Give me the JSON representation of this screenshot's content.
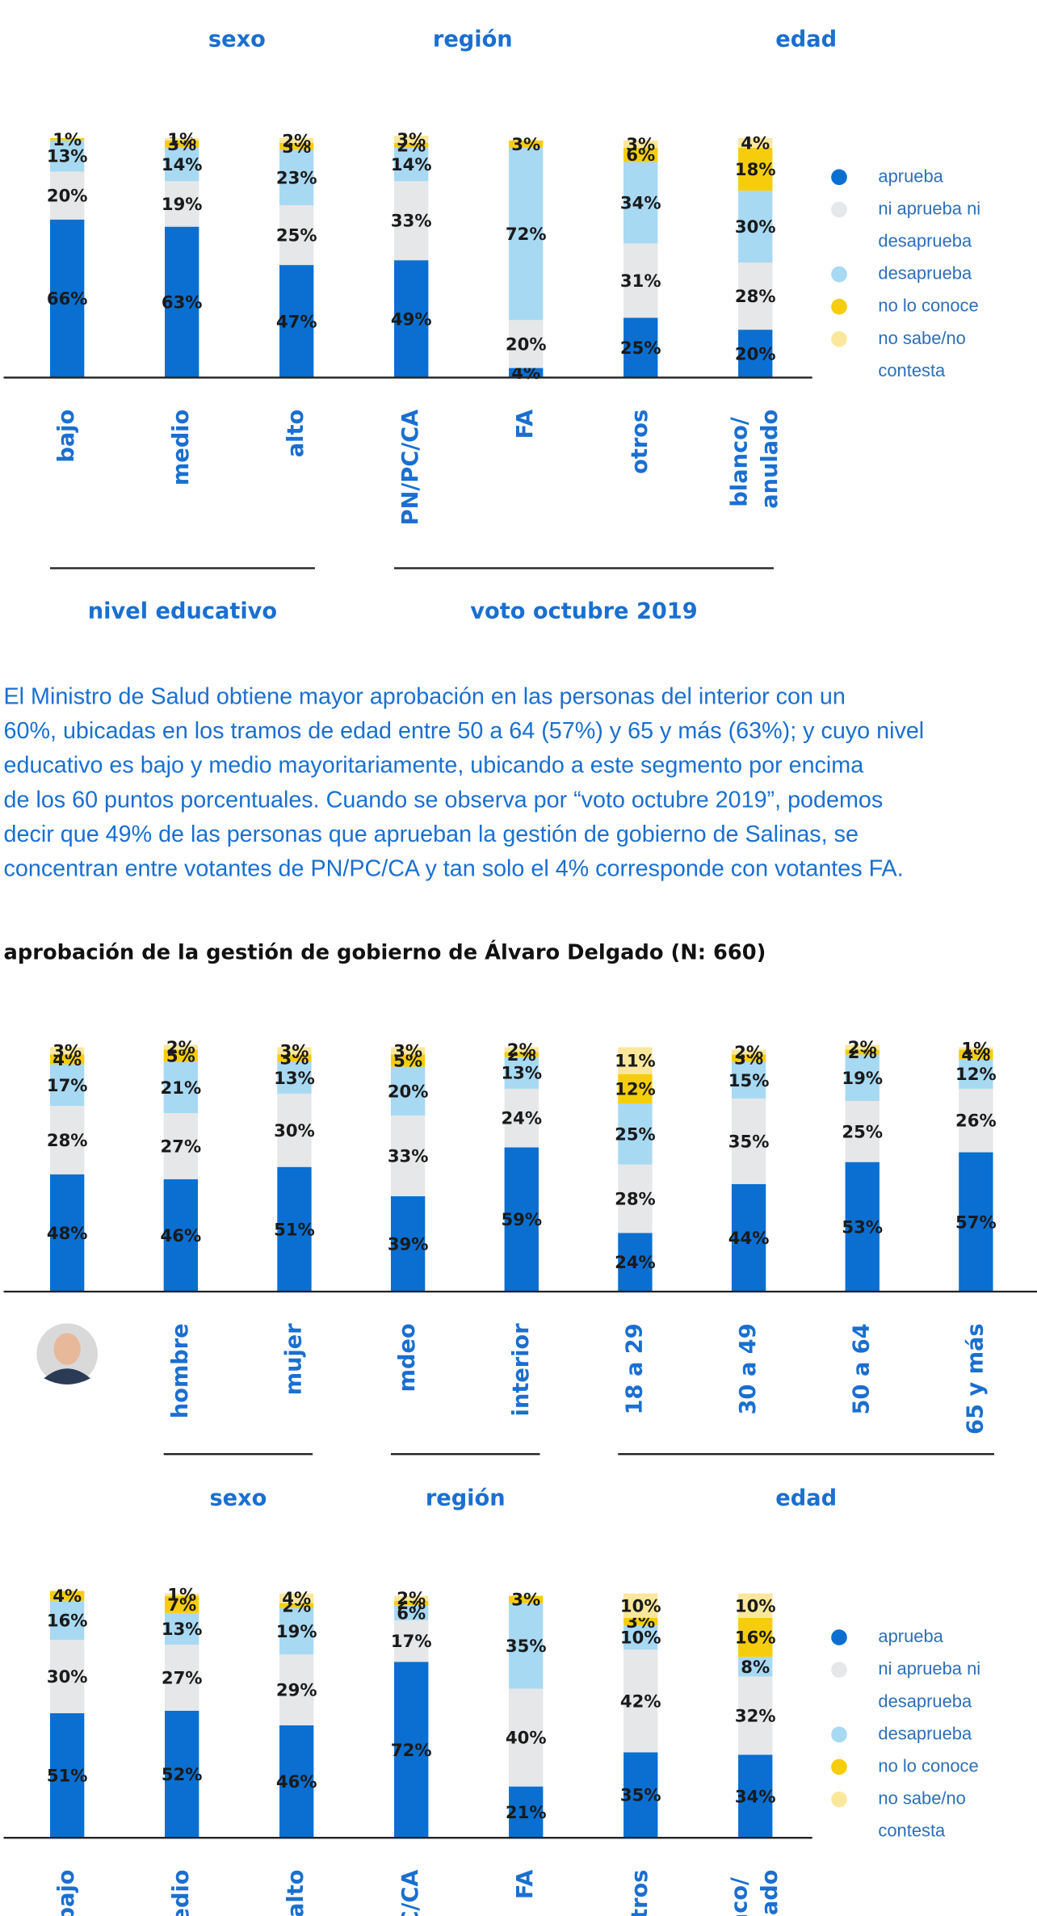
{
  "header_labels": [
    "sexo",
    "región",
    "edad"
  ],
  "paragraph": [
    "El Ministro de Salud obtiene mayor aprobación en las personas del interior con un",
    "60%, ubicadas en los tramos de edad entre 50 a 64 (57%) y 65 y más (63%); y cuyo nivel",
    "educativo es bajo y medio mayoritariamente, ubicando a este segmento por encima",
    "de los 60 puntos porcentuales. Cuando se observa por “voto octubre 2019”, podemos",
    "decir que 49% de las personas que aprueban la gestión de gobierno de Salinas, se",
    "concentran entre votantes de PN/PC/CA y tan solo el 4% corresponde con votantes FA."
  ],
  "heading": "aprobación de la gestión de gobierno de Álvaro Delgado (N: 660)",
  "chart_data": [
    {
      "type": "stacked-bar",
      "ylim": [
        0,
        100
      ],
      "legend": true,
      "categories": [
        "bajo",
        "medio",
        "alto",
        "PN/PC/CA",
        "FA",
        "otros",
        "blanco/ anulado"
      ],
      "groups": [
        "nivel educativo",
        "voto octubre 2019"
      ],
      "series": [
        {
          "name": "aprueba",
          "color": "#0a6fd0",
          "values": [
            66,
            63,
            47,
            49,
            4,
            25,
            20
          ],
          "value_labels": [
            "66%",
            "63%",
            "47%",
            "49%",
            "4%",
            "25%",
            "20%"
          ]
        },
        {
          "name": "ni aprueba ni desaprueba",
          "color": "#e6e7e8",
          "values": [
            20,
            19,
            25,
            33,
            20,
            31,
            28
          ],
          "value_labels": [
            "20%",
            "19%",
            "25%",
            "33%",
            "20%",
            "31%",
            "28%"
          ]
        },
        {
          "name": "desaprueba",
          "color": "#a8d9f3",
          "values": [
            13,
            14,
            23,
            14,
            72,
            34,
            30
          ],
          "value_labels": [
            "13%",
            "14%",
            "23%",
            "14%",
            "72%",
            "34%",
            "30%"
          ]
        },
        {
          "name": "no lo conoce",
          "color": "#f6cd0c",
          "values": [
            1,
            3,
            3,
            2,
            3,
            6,
            18
          ],
          "value_labels": [
            "1%",
            "3%",
            "3%",
            "2%",
            "3%",
            "6%",
            "18%"
          ]
        },
        {
          "name": "no sabe/no contesta",
          "color": "#fbe79c",
          "values": [
            null,
            1,
            2,
            3,
            null,
            3,
            4
          ],
          "value_labels": [
            null,
            "1%",
            "2%",
            "3%",
            null,
            "3%",
            "4%"
          ]
        }
      ]
    },
    {
      "type": "stacked-bar",
      "ylim": [
        0,
        100
      ],
      "legend": false,
      "categories": [
        null,
        "hombre",
        "mujer",
        "mdeo",
        "interior",
        "18 a 29",
        "30 a 49",
        "50 a 64",
        "65 y más"
      ],
      "groups": [
        "sexo",
        "región",
        "edad"
      ],
      "series": [
        {
          "name": "aprueba",
          "color": "#0a6fd0",
          "values": [
            48,
            46,
            51,
            39,
            59,
            24,
            44,
            53,
            57
          ],
          "value_labels": [
            "48%",
            "46%",
            "51%",
            "39%",
            "59%",
            "24%",
            "44%",
            "53%",
            "57%"
          ]
        },
        {
          "name": "ni aprueba ni desaprueba",
          "color": "#e6e7e8",
          "values": [
            28,
            27,
            30,
            33,
            24,
            28,
            35,
            25,
            26
          ],
          "value_labels": [
            "28%",
            "27%",
            "30%",
            "33%",
            "24%",
            "28%",
            "35%",
            "25%",
            "26%"
          ]
        },
        {
          "name": "desaprueba",
          "color": "#a8d9f3",
          "values": [
            17,
            21,
            13,
            20,
            13,
            25,
            15,
            19,
            12
          ],
          "value_labels": [
            "17%",
            "21%",
            "13%",
            "20%",
            "13%",
            "25%",
            "15%",
            "19%",
            "12%"
          ]
        },
        {
          "name": "no lo conoce",
          "color": "#f6cd0c",
          "values": [
            4,
            5,
            3,
            5,
            2,
            12,
            3,
            2,
            4
          ],
          "value_labels": [
            "4%",
            "5%",
            "3%",
            "5%",
            "2%",
            "12%",
            "3%",
            "2%",
            "4%"
          ]
        },
        {
          "name": "no sabe/no contesta",
          "color": "#fbe79c",
          "values": [
            3,
            2,
            3,
            3,
            2,
            11,
            2,
            2,
            1
          ],
          "value_labels": [
            "3%",
            "2%",
            "3%",
            "3%",
            "2%",
            "11%",
            "2%",
            "2%",
            "1%"
          ]
        }
      ]
    },
    {
      "type": "stacked-bar",
      "ylim": [
        0,
        100
      ],
      "legend": true,
      "categories": [
        "bajo",
        "medio",
        "alto",
        "PN/PC/CA",
        "FA",
        "otros",
        "blanco/ anulado"
      ],
      "series": [
        {
          "name": "aprueba",
          "color": "#0a6fd0",
          "values": [
            51,
            52,
            46,
            72,
            21,
            35,
            34
          ],
          "value_labels": [
            "51%",
            "52%",
            "46%",
            "72%",
            "21%",
            "35%",
            "34%"
          ]
        },
        {
          "name": "ni aprueba ni desaprueba",
          "color": "#e6e7e8",
          "values": [
            30,
            27,
            29,
            17,
            40,
            42,
            32
          ],
          "value_labels": [
            "30%",
            "27%",
            "29%",
            "17%",
            "40%",
            "42%",
            "32%"
          ]
        },
        {
          "name": "desaprueba",
          "color": "#a8d9f3",
          "values": [
            16,
            13,
            19,
            6,
            35,
            10,
            8
          ],
          "value_labels": [
            "16%",
            "13%",
            "19%",
            "6%",
            "35%",
            "10%",
            "8%"
          ]
        },
        {
          "name": "no lo conoce",
          "color": "#f6cd0c",
          "values": [
            4,
            7,
            2,
            2,
            3,
            3,
            16
          ],
          "value_labels": [
            "4%",
            "7%",
            "2%",
            "2%",
            "3%",
            "3%",
            "16%"
          ]
        },
        {
          "name": "no sabe/no contesta",
          "color": "#fbe79c",
          "values": [
            null,
            1,
            4,
            2,
            null,
            10,
            10
          ],
          "value_labels": [
            null,
            "1%",
            "4%",
            "2%",
            null,
            "10%",
            "10%"
          ]
        }
      ]
    }
  ]
}
